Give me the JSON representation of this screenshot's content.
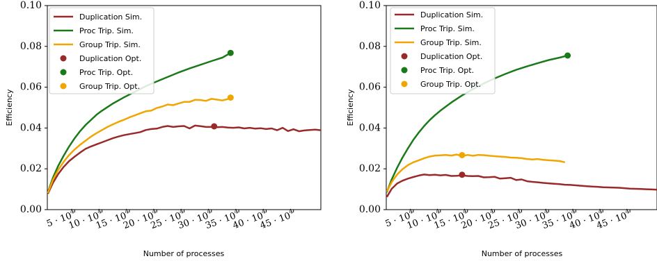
{
  "figure": {
    "xlabel": "Number of processes",
    "ylabel": "Efficiency",
    "yticks": [
      "0.00",
      "0.02",
      "0.04",
      "0.06",
      "0.08",
      "0.10"
    ],
    "xtick_bases": [
      "5",
      "10",
      "15",
      "20",
      "25",
      "30",
      "35",
      "40",
      "45"
    ],
    "xtick_exp": "4",
    "legend": {
      "dup_sim": "Duplication Sim.",
      "proc_sim": "Proc Trip. Sim.",
      "group_sim": "Group Trip. Sim.",
      "dup_opt": "Duplication Opt.",
      "proc_opt": "Proc Trip. Opt.",
      "group_opt": "Group Trip. Opt."
    }
  },
  "chart_data": [
    {
      "type": "line",
      "xlabel": "Number of processes",
      "ylabel": "Efficiency",
      "xlim": [
        0,
        500000
      ],
      "ylim": [
        0,
        0.1
      ],
      "legend_position": "top-left",
      "series": [
        {
          "name": "Duplication Sim.",
          "color": "#9a2a2a",
          "x": [
            1000,
            10000,
            20000,
            30000,
            40000,
            50000,
            60000,
            70000,
            80000,
            90000,
            100000,
            110000,
            120000,
            130000,
            140000,
            150000,
            160000,
            170000,
            180000,
            190000,
            200000,
            210000,
            220000,
            230000,
            240000,
            250000,
            260000,
            270000,
            280000,
            290000,
            300000,
            310000,
            320000,
            330000,
            340000,
            350000,
            360000,
            370000,
            380000,
            390000,
            400000,
            410000,
            420000,
            430000,
            440000,
            450000,
            460000,
            470000,
            480000,
            490000,
            500000
          ],
          "values": [
            0.0078,
            0.013,
            0.0175,
            0.021,
            0.0238,
            0.026,
            0.028,
            0.0298,
            0.031,
            0.032,
            0.033,
            0.034,
            0.035,
            0.0358,
            0.0365,
            0.037,
            0.0375,
            0.038,
            0.039,
            0.0395,
            0.0397,
            0.0405,
            0.041,
            0.0405,
            0.0408,
            0.041,
            0.0398,
            0.0412,
            0.0409,
            0.0405,
            0.0405,
            0.0404,
            0.0405,
            0.0402,
            0.0401,
            0.0403,
            0.0398,
            0.0401,
            0.0397,
            0.0399,
            0.0395,
            0.0398,
            0.0389,
            0.0401,
            0.0385,
            0.0394,
            0.0384,
            0.0388,
            0.039,
            0.0392,
            0.0389
          ]
        },
        {
          "name": "Proc Trip. Sim.",
          "color": "#1a7a1a",
          "x": [
            1000,
            10000,
            20000,
            30000,
            40000,
            50000,
            60000,
            70000,
            80000,
            90000,
            100000,
            120000,
            140000,
            160000,
            180000,
            200000,
            220000,
            240000,
            260000,
            280000,
            300000,
            320000,
            335000
          ],
          "values": [
            0.0085,
            0.0155,
            0.0215,
            0.0265,
            0.031,
            0.035,
            0.0385,
            0.0415,
            0.044,
            0.0465,
            0.0485,
            0.052,
            0.055,
            0.0578,
            0.0605,
            0.0628,
            0.065,
            0.0672,
            0.0692,
            0.071,
            0.0728,
            0.0745,
            0.0768
          ]
        },
        {
          "name": "Group Trip. Sim.",
          "color": "#f0a500",
          "x": [
            1000,
            10000,
            20000,
            30000,
            40000,
            50000,
            60000,
            70000,
            80000,
            90000,
            100000,
            110000,
            120000,
            130000,
            140000,
            150000,
            160000,
            170000,
            180000,
            190000,
            200000,
            210000,
            220000,
            230000,
            240000,
            250000,
            260000,
            270000,
            280000,
            290000,
            300000,
            310000,
            320000,
            330000,
            335000
          ],
          "values": [
            0.0082,
            0.0145,
            0.0195,
            0.0235,
            0.0268,
            0.0295,
            0.0318,
            0.0338,
            0.0358,
            0.0375,
            0.039,
            0.0405,
            0.0418,
            0.043,
            0.044,
            0.0452,
            0.0462,
            0.0472,
            0.0482,
            0.0485,
            0.0498,
            0.0505,
            0.0515,
            0.0512,
            0.052,
            0.0528,
            0.0528,
            0.0538,
            0.0537,
            0.0533,
            0.0543,
            0.0539,
            0.0535,
            0.0542,
            0.0549
          ]
        },
        {
          "name": "Duplication Opt.",
          "color": "#9a2a2a",
          "marker": "point",
          "x": [
            305000
          ],
          "values": [
            0.0408
          ]
        },
        {
          "name": "Proc Trip. Opt.",
          "color": "#1a7a1a",
          "marker": "point",
          "x": [
            335000
          ],
          "values": [
            0.0768
          ]
        },
        {
          "name": "Group Trip. Opt.",
          "color": "#f0a500",
          "marker": "point",
          "x": [
            335000
          ],
          "values": [
            0.0549
          ]
        }
      ]
    },
    {
      "type": "line",
      "xlabel": "Number of processes",
      "ylabel": "Efficiency",
      "xlim": [
        0,
        500000
      ],
      "ylim": [
        0,
        0.1
      ],
      "legend_position": "top-left",
      "series": [
        {
          "name": "Duplication Sim.",
          "color": "#9a2a2a",
          "x": [
            1000,
            10000,
            20000,
            30000,
            40000,
            50000,
            60000,
            70000,
            80000,
            90000,
            100000,
            110000,
            120000,
            130000,
            140000,
            150000,
            160000,
            170000,
            180000,
            190000,
            200000,
            210000,
            220000,
            230000,
            240000,
            250000,
            260000,
            270000,
            280000,
            290000,
            300000,
            310000,
            320000,
            330000,
            340000,
            350000,
            360000,
            370000,
            380000,
            390000,
            400000,
            410000,
            420000,
            430000,
            440000,
            450000,
            460000,
            470000,
            480000,
            490000,
            500000
          ],
          "values": [
            0.0062,
            0.0102,
            0.0128,
            0.0142,
            0.0152,
            0.016,
            0.0167,
            0.0172,
            0.0169,
            0.0171,
            0.0168,
            0.017,
            0.0165,
            0.0166,
            0.0168,
            0.0165,
            0.0164,
            0.0165,
            0.0158,
            0.0159,
            0.0161,
            0.0152,
            0.0154,
            0.0156,
            0.0145,
            0.0148,
            0.0139,
            0.0136,
            0.0134,
            0.0131,
            0.0129,
            0.0127,
            0.0125,
            0.0122,
            0.0121,
            0.0119,
            0.0117,
            0.0115,
            0.0113,
            0.0112,
            0.011,
            0.0109,
            0.0108,
            0.0107,
            0.0105,
            0.0103,
            0.0102,
            0.0101,
            0.01,
            0.0099,
            0.0098
          ]
        },
        {
          "name": "Proc Trip. Sim.",
          "color": "#1a7a1a",
          "x": [
            1000,
            10000,
            20000,
            30000,
            40000,
            50000,
            60000,
            70000,
            80000,
            90000,
            100000,
            120000,
            140000,
            160000,
            180000,
            200000,
            220000,
            240000,
            260000,
            280000,
            300000,
            320000,
            335000
          ],
          "values": [
            0.0085,
            0.0148,
            0.0205,
            0.0255,
            0.03,
            0.0342,
            0.0378,
            0.041,
            0.0438,
            0.0463,
            0.0485,
            0.0525,
            0.056,
            0.059,
            0.0618,
            0.0643,
            0.0665,
            0.0685,
            0.0702,
            0.0718,
            0.0733,
            0.0745,
            0.0755
          ]
        },
        {
          "name": "Group Trip. Sim.",
          "color": "#f0a500",
          "x": [
            1000,
            10000,
            20000,
            30000,
            40000,
            50000,
            60000,
            70000,
            80000,
            90000,
            100000,
            110000,
            120000,
            130000,
            140000,
            150000,
            160000,
            170000,
            180000,
            190000,
            200000,
            210000,
            220000,
            230000,
            240000,
            250000,
            260000,
            270000,
            280000,
            290000,
            300000,
            310000,
            320000,
            330000
          ],
          "values": [
            0.0088,
            0.0135,
            0.0172,
            0.0198,
            0.0218,
            0.0232,
            0.0242,
            0.0252,
            0.026,
            0.0265,
            0.0266,
            0.0268,
            0.0265,
            0.027,
            0.0262,
            0.0268,
            0.0264,
            0.0268,
            0.0267,
            0.0264,
            0.0262,
            0.026,
            0.0258,
            0.0255,
            0.0254,
            0.0252,
            0.0248,
            0.0246,
            0.0248,
            0.0244,
            0.0242,
            0.024,
            0.0238,
            0.0232
          ]
        },
        {
          "name": "Duplication Opt.",
          "color": "#9a2a2a",
          "marker": "point",
          "x": [
            140000
          ],
          "values": [
            0.0171
          ]
        },
        {
          "name": "Proc Trip. Opt.",
          "color": "#1a7a1a",
          "marker": "point",
          "x": [
            335000
          ],
          "values": [
            0.0755
          ]
        },
        {
          "name": "Group Trip. Opt.",
          "color": "#f0a500",
          "marker": "point",
          "x": [
            140000
          ],
          "values": [
            0.0267
          ]
        }
      ]
    }
  ]
}
